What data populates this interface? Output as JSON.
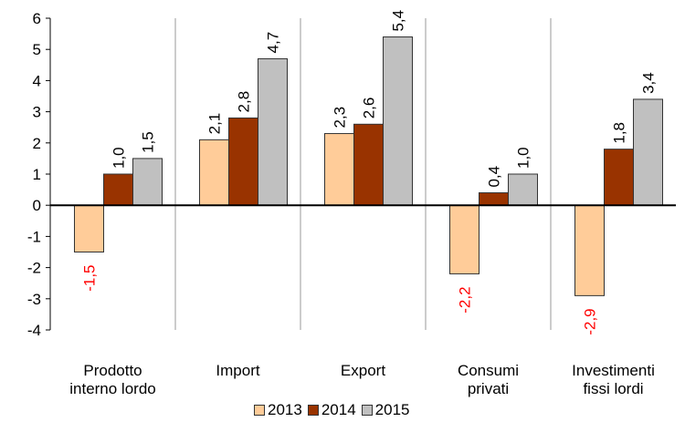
{
  "chart_data": {
    "type": "bar",
    "categories": [
      "Prodotto\ninterno lordo",
      "Import",
      "Export",
      "Consumi\nprivati",
      "Investimenti\nfissi lordi"
    ],
    "series": [
      {
        "name": "2013",
        "values": [
          -1.5,
          2.1,
          2.3,
          -2.2,
          -2.9
        ],
        "labels": [
          "-1,5",
          "2,1",
          "2,3",
          "-2,2",
          "-2,9"
        ]
      },
      {
        "name": "2014",
        "values": [
          1.0,
          2.8,
          2.6,
          0.4,
          1.8
        ],
        "labels": [
          "1,0",
          "2,8",
          "2,6",
          "0,4",
          "1,8"
        ]
      },
      {
        "name": "2015",
        "values": [
          1.5,
          4.7,
          5.4,
          1.0,
          3.4
        ],
        "labels": [
          "1,5",
          "4,7",
          "5,4",
          "1,0",
          "3,4"
        ]
      }
    ],
    "colors": {
      "2013": "#FFCC99",
      "2014": "#993300",
      "2015": "#C0C0C0",
      "negative_label": "#FF0000"
    },
    "ylim": [
      -4,
      6
    ],
    "yticks": [
      "-4",
      "-3",
      "-2",
      "-1",
      "0",
      "1",
      "2",
      "3",
      "4",
      "5",
      "6"
    ],
    "grid": false,
    "separators": true,
    "legend_position": "bottom"
  }
}
